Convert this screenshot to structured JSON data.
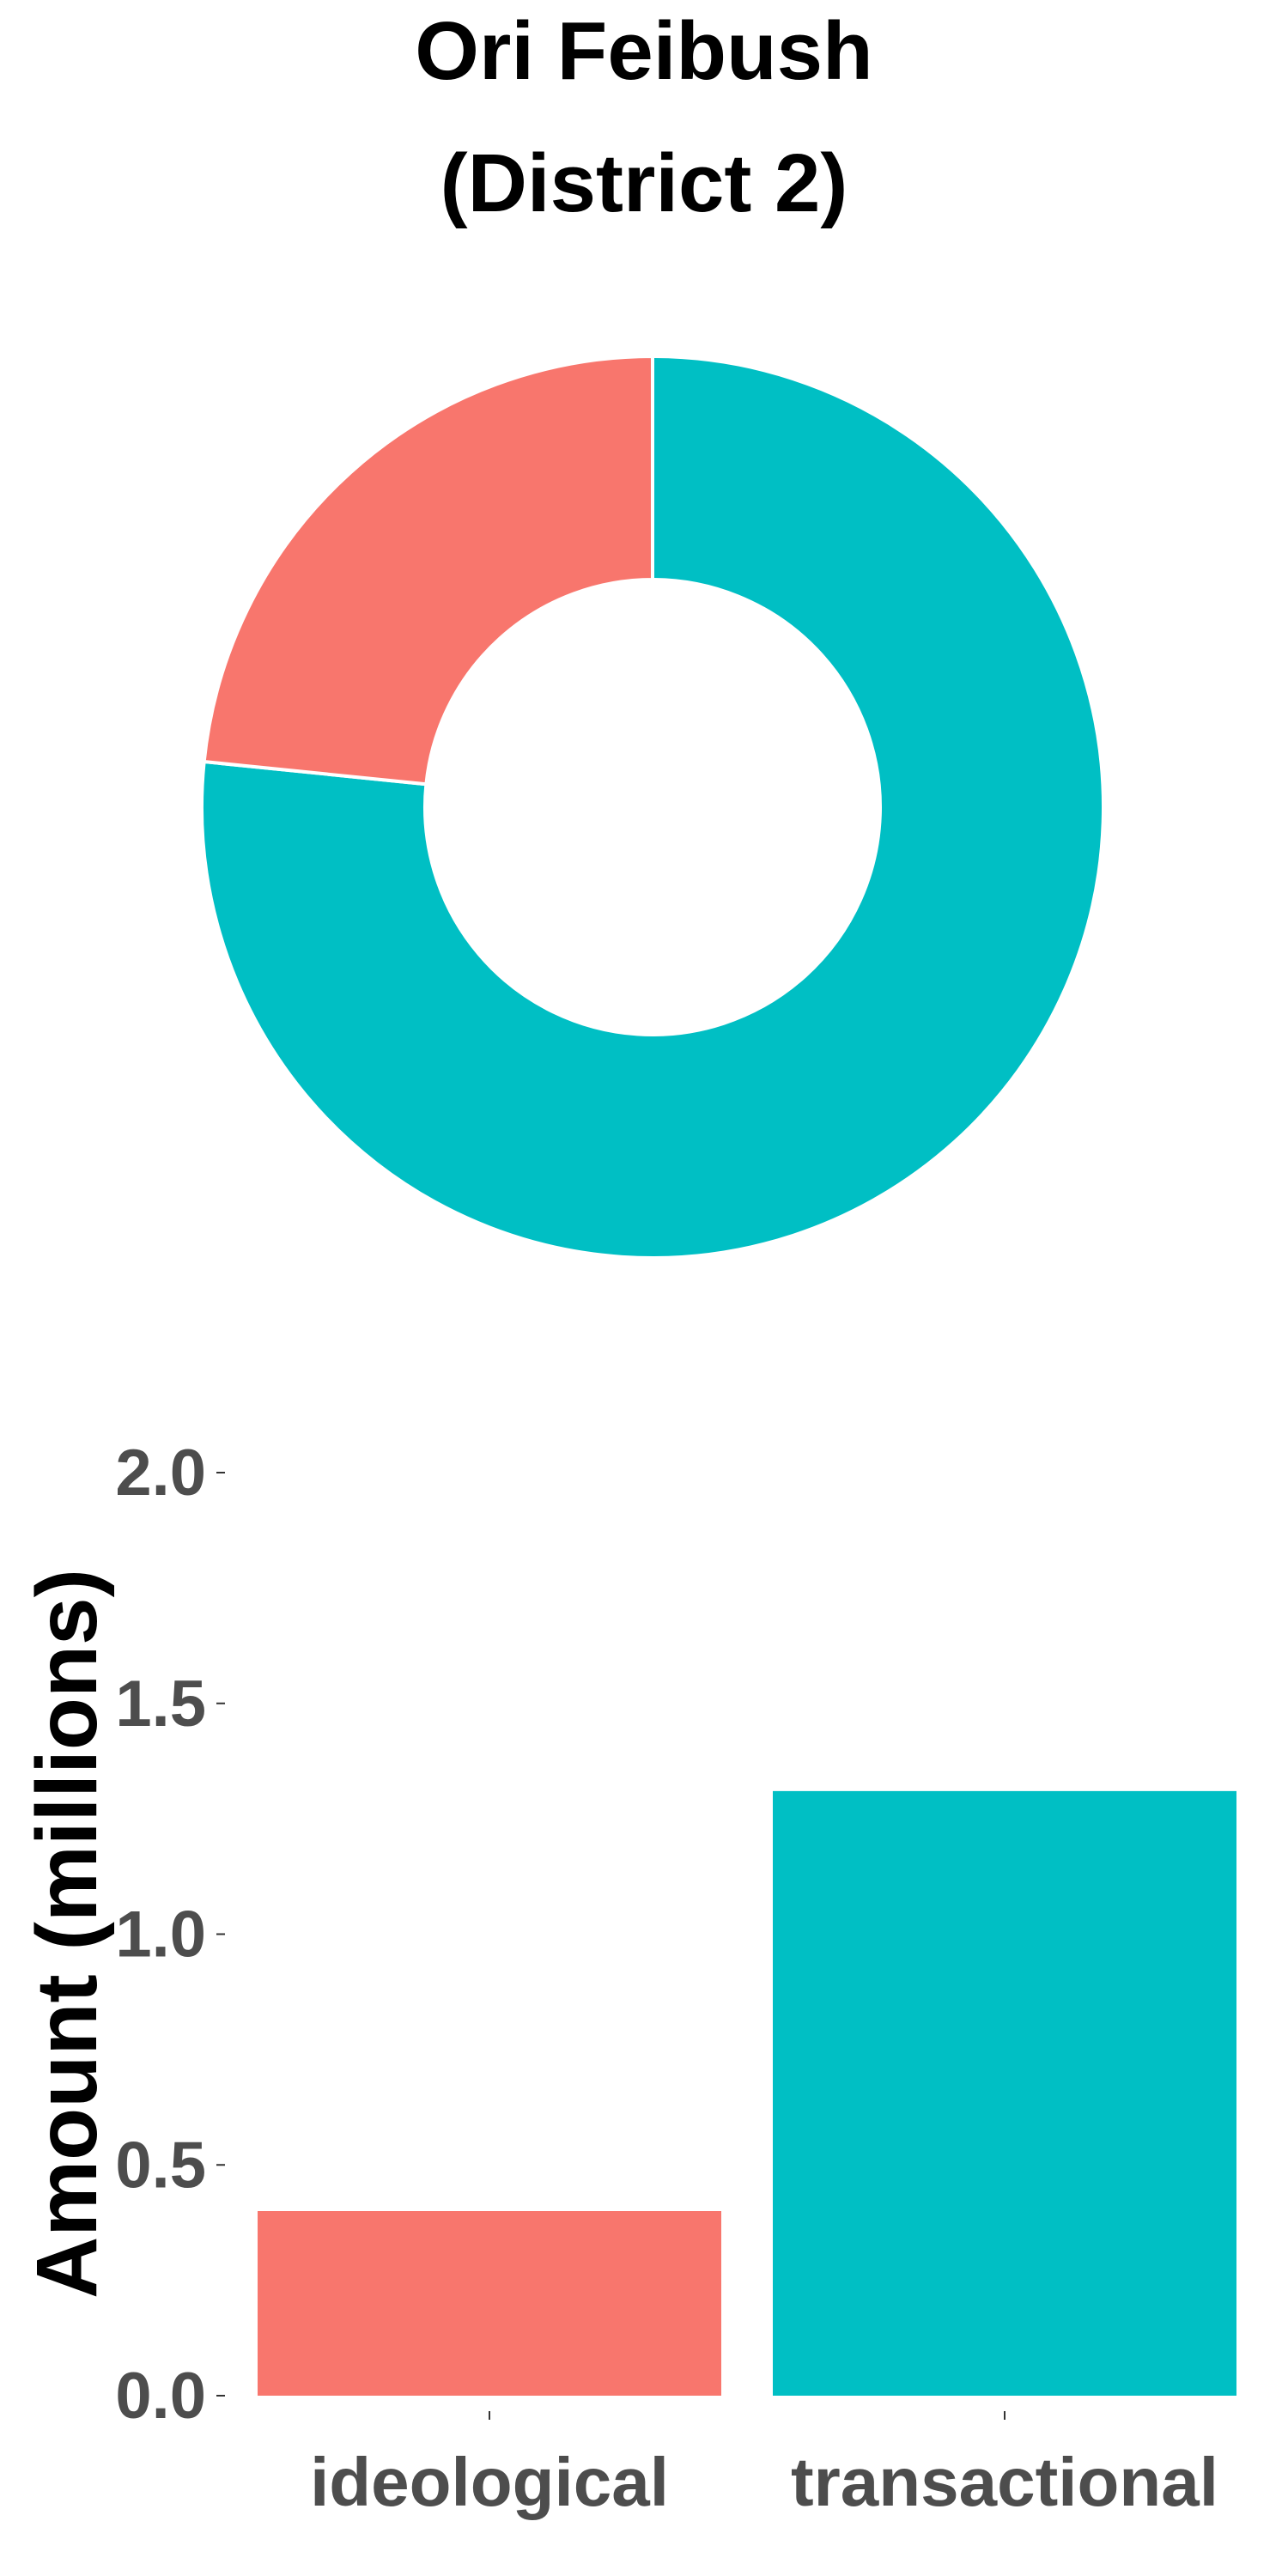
{
  "title": {
    "line1": "Ori Feibush",
    "line2": "(District 2)"
  },
  "colors": {
    "ideological": "#F8766D",
    "transactional": "#00BFC4",
    "tick_text": "#4d4d4d",
    "title_text": "#000000",
    "separator": "#ffffff"
  },
  "chart_data": [
    {
      "type": "pie",
      "variant": "donut",
      "title": "Ori Feibush (District 2)",
      "categories": [
        "ideological",
        "transactional"
      ],
      "values": [
        0.4,
        1.31
      ],
      "unit": "millions",
      "legend": "none"
    },
    {
      "type": "bar",
      "categories": [
        "ideological",
        "transactional"
      ],
      "values": [
        0.4,
        1.31
      ],
      "xlabel": "",
      "ylabel": "Amount (millions)",
      "ylim": [
        0,
        2.0
      ],
      "yticks": [
        "0.0",
        "0.5",
        "1.0",
        "1.5",
        "2.0"
      ],
      "grid": false,
      "legend": "none"
    }
  ]
}
